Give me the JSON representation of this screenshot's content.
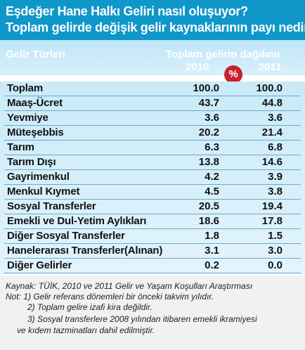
{
  "header": {
    "title_line1": "Eşdeğer Hane Halkı Geliri nasıl oluşuyor?",
    "title_line2": "Toplam gelirde değişik gelir kaynaklarının payı nedir?"
  },
  "colors": {
    "header_bg": "#0f97c9",
    "table_bg": "#d6eff9",
    "badge": "#c8222b",
    "notes_bg": "#f1f1f1"
  },
  "chart_data": {
    "type": "table",
    "column_header": "Gelir Türleri",
    "value_header": "Toplam gelirin dağılımı",
    "unit_badge": "%",
    "series": [
      {
        "name": "2010",
        "values": [
          100.0,
          43.7,
          3.6,
          20.2,
          6.3,
          13.8,
          4.2,
          4.5,
          20.5,
          18.6,
          1.8,
          3.1,
          0.2
        ]
      },
      {
        "name": "2011",
        "values": [
          100.0,
          44.8,
          3.6,
          21.4,
          6.8,
          14.6,
          3.9,
          3.8,
          19.4,
          17.8,
          1.5,
          3.0,
          0.0
        ]
      }
    ],
    "rows": [
      {
        "label": "Toplam",
        "v2010": "100.0",
        "v2011": "100.0"
      },
      {
        "label": "Maaş-Ücret",
        "v2010": "43.7",
        "v2011": "44.8"
      },
      {
        "label": "Yevmiye",
        "v2010": "3.6",
        "v2011": "3.6"
      },
      {
        "label": "Müteşebbis",
        "v2010": "20.2",
        "v2011": "21.4"
      },
      {
        "label": "Tarım",
        "v2010": "6.3",
        "v2011": "6.8"
      },
      {
        "label": "Tarım Dışı",
        "v2010": "13.8",
        "v2011": "14.6"
      },
      {
        "label": "Gayrimenkul",
        "v2010": "4.2",
        "v2011": "3.9"
      },
      {
        "label": "Menkul Kıymet",
        "v2010": "4.5",
        "v2011": "3.8"
      },
      {
        "label": "Sosyal Transferler",
        "v2010": "20.5",
        "v2011": "19.4"
      },
      {
        "label": "Emekli ve Dul-Yetim Aylıkları",
        "v2010": "18.6",
        "v2011": "17.8"
      },
      {
        "label": "Diğer Sosyal Transferler",
        "v2010": "1.8",
        "v2011": "1.5"
      },
      {
        "label": "Hanelerarası Transferler(Alınan)",
        "v2010": "3.1",
        "v2011": "3.0"
      },
      {
        "label": "Diğer Gelirler",
        "v2010": "0.2",
        "v2011": "0.0"
      }
    ]
  },
  "notes": {
    "source": "Kaynak: TÜİK, 2010 ve 2011 Gelir ve Yaşam Koşulları Araştırması",
    "note1": "Not: 1) Gelir referans dönemleri bir önceki takvim yılıdır.",
    "note2": "2) Toplam gelire izafi kira değildir.",
    "note3a": "3) Sosyal transferlere 2008 yılından itibaren emekli ikramiyesi",
    "note3b": "ve kıdem tazminatları dahil edilmiştir."
  }
}
